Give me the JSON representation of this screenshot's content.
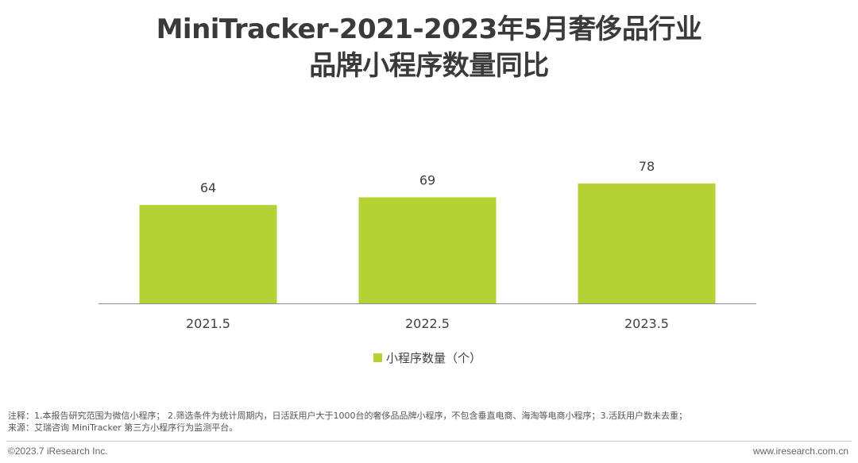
{
  "title": {
    "line1": "MiniTracker-2021-2023年5月奢侈品行业",
    "line2": "品牌小程序数量同比"
  },
  "chart_data": {
    "type": "bar",
    "categories": [
      "2021.5",
      "2022.5",
      "2023.5"
    ],
    "series": [
      {
        "name": "小程序数量（个）",
        "values": [
          64,
          69,
          78
        ],
        "color": "#b3d335"
      }
    ],
    "data_labels": [
      "64",
      "69",
      "78"
    ],
    "ylim": [
      0,
      100
    ],
    "grid": false,
    "legend_position": "bottom-center"
  },
  "notes": {
    "line1": "注释：1.本报告研究范围为微信小程序； 2.筛选条件为统计周期内，日活跃用户大于1000台的奢侈品品牌小程序，不包含垂直电商、海淘等电商小程序；3.活跃用户数未去重；",
    "line2": "来源：艾瑞咨询 MiniTracker 第三方小程序行为监测平台。"
  },
  "footer": {
    "copyright": "©2023.7 iResearch Inc.",
    "website": "www.iresearch.com.cn"
  }
}
